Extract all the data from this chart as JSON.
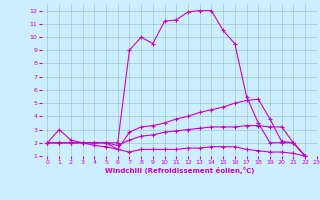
{
  "xlabel": "Windchill (Refroidissement éolien,°C)",
  "xlim": [
    -0.5,
    23
  ],
  "ylim": [
    1,
    12.5
  ],
  "xticks": [
    0,
    1,
    2,
    3,
    4,
    5,
    6,
    7,
    8,
    9,
    10,
    11,
    12,
    13,
    14,
    15,
    16,
    17,
    18,
    19,
    20,
    21,
    22,
    23
  ],
  "yticks": [
    1,
    2,
    3,
    4,
    5,
    6,
    7,
    8,
    9,
    10,
    11,
    12
  ],
  "background_color": "#cceeff",
  "grid_color": "#99cccc",
  "line_color": "#cc00cc",
  "lines": [
    {
      "x": [
        0,
        1,
        2,
        3,
        4,
        5,
        6,
        7,
        8,
        9,
        10,
        11,
        12,
        13,
        14,
        15,
        16,
        17,
        18,
        19,
        20,
        21,
        22
      ],
      "y": [
        2,
        3,
        2.2,
        2,
        2,
        2,
        2,
        9,
        10,
        9.5,
        11.2,
        11.3,
        11.9,
        12,
        12,
        10.5,
        9.5,
        5.5,
        3.5,
        2,
        2,
        2,
        1
      ]
    },
    {
      "x": [
        0,
        1,
        2,
        3,
        4,
        5,
        6,
        7,
        8,
        9,
        10,
        11,
        12,
        13,
        14,
        15,
        16,
        17,
        18,
        19,
        20,
        21,
        22
      ],
      "y": [
        2,
        2,
        2,
        2,
        2,
        2,
        1.5,
        2.8,
        3.2,
        3.3,
        3.5,
        3.8,
        4.0,
        4.3,
        4.5,
        4.7,
        5.0,
        5.2,
        5.3,
        3.8,
        2.1,
        2,
        1
      ]
    },
    {
      "x": [
        0,
        1,
        2,
        3,
        4,
        5,
        6,
        7,
        8,
        9,
        10,
        11,
        12,
        13,
        14,
        15,
        16,
        17,
        18,
        19,
        20,
        21,
        22
      ],
      "y": [
        2,
        2,
        2,
        2,
        2,
        2,
        1.8,
        2.2,
        2.5,
        2.6,
        2.8,
        2.9,
        3.0,
        3.1,
        3.2,
        3.2,
        3.2,
        3.3,
        3.3,
        3.2,
        3.2,
        2,
        1
      ]
    },
    {
      "x": [
        0,
        1,
        2,
        3,
        4,
        5,
        6,
        7,
        8,
        9,
        10,
        11,
        12,
        13,
        14,
        15,
        16,
        17,
        18,
        19,
        20,
        21,
        22
      ],
      "y": [
        2,
        2,
        2,
        2,
        1.8,
        1.7,
        1.5,
        1.3,
        1.5,
        1.5,
        1.5,
        1.5,
        1.6,
        1.6,
        1.7,
        1.7,
        1.7,
        1.5,
        1.4,
        1.3,
        1.3,
        1.2,
        1
      ]
    }
  ]
}
